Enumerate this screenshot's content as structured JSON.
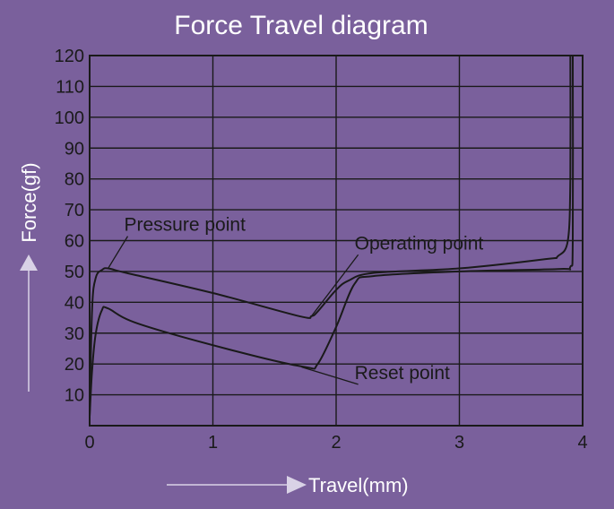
{
  "colors": {
    "background": "#7a609c",
    "line": "#1a1a1a",
    "title": "#ffffff",
    "axis_arrow": "#d9d2e6"
  },
  "chart_data": {
    "type": "line",
    "title": "Force Travel diagram",
    "xlabel": "Travel(mm)",
    "ylabel": "Force(gf)",
    "xlim": [
      0,
      4
    ],
    "ylim": [
      0,
      120
    ],
    "x_ticks": [
      "0",
      "1",
      "2",
      "3",
      "4"
    ],
    "y_ticks": [
      "10",
      "20",
      "30",
      "40",
      "50",
      "60",
      "70",
      "80",
      "90",
      "100",
      "110",
      "120"
    ],
    "grid": true,
    "series": [
      {
        "x": [
          0,
          0.02,
          0.05,
          0.1,
          0.15,
          0.3,
          1.0,
          1.7,
          1.8,
          1.85,
          2.0,
          2.1,
          2.3,
          3.0,
          3.7,
          3.8,
          3.88,
          3.9,
          3.9
        ],
        "y": [
          3,
          38,
          48,
          50.5,
          51,
          49.5,
          43,
          35.5,
          35.5,
          37,
          44,
          47,
          49.5,
          51,
          54,
          55,
          60,
          80,
          120
        ]
      },
      {
        "x": [
          3.92,
          3.92,
          3.9,
          3.8,
          3.0,
          2.3,
          2.15,
          2.0,
          1.85,
          1.75,
          1.2,
          0.4,
          0.15,
          0.1,
          0.05,
          0.02,
          0
        ],
        "y": [
          120,
          60,
          51.5,
          50.8,
          50,
          48.5,
          46,
          32,
          20,
          19,
          24,
          33,
          38,
          37.5,
          30,
          18,
          3
        ]
      }
    ],
    "annotations": [
      {
        "text": "Pressure point",
        "target": [
          0.15,
          51
        ],
        "label_at": [
          0.28,
          62
        ]
      },
      {
        "text": "Operating point",
        "target": [
          1.8,
          35.5
        ],
        "label_at": [
          2.15,
          56
        ]
      },
      {
        "text": "Reset point",
        "target": [
          1.72,
          19
        ],
        "label_at": [
          2.15,
          14
        ]
      }
    ]
  }
}
